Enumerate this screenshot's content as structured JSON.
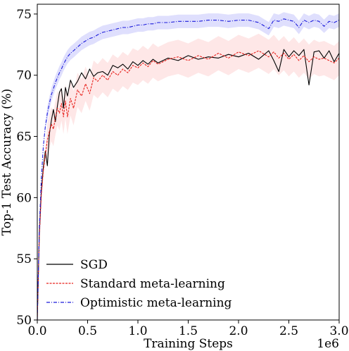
{
  "chart_data": {
    "type": "line",
    "xlabel": "Training Steps",
    "ylabel": "Top-1 Test Accuracy (%)",
    "x_offset_label": "1e6",
    "xlim": [
      0,
      3.0
    ],
    "ylim": [
      50,
      75.8
    ],
    "x_ticks": [
      0.0,
      0.5,
      1.0,
      1.5,
      2.0,
      2.5,
      3.0
    ],
    "x_tick_labels": [
      "0.0",
      "0.5",
      "1.0",
      "1.5",
      "2.0",
      "2.5",
      "3.0"
    ],
    "y_ticks": [
      50,
      55,
      60,
      65,
      70,
      75
    ],
    "y_tick_labels": [
      "50",
      "55",
      "60",
      "65",
      "70",
      "75"
    ],
    "grid": false,
    "legend_position": "lower-left",
    "series": [
      {
        "name": "SGD",
        "color": "#000000",
        "style": "solid",
        "x": [
          0.0,
          0.02,
          0.04,
          0.06,
          0.08,
          0.1,
          0.12,
          0.14,
          0.16,
          0.18,
          0.2,
          0.22,
          0.24,
          0.26,
          0.28,
          0.3,
          0.33,
          0.36,
          0.4,
          0.44,
          0.48,
          0.52,
          0.56,
          0.6,
          0.65,
          0.7,
          0.75,
          0.8,
          0.85,
          0.9,
          0.95,
          1.0,
          1.05,
          1.1,
          1.15,
          1.2,
          1.3,
          1.4,
          1.5,
          1.6,
          1.7,
          1.8,
          1.9,
          2.0,
          2.1,
          2.2,
          2.3,
          2.35,
          2.4,
          2.45,
          2.5,
          2.55,
          2.6,
          2.65,
          2.7,
          2.75,
          2.8,
          2.85,
          2.9,
          2.95,
          3.0
        ],
        "y": [
          50.0,
          57.0,
          60.5,
          62.5,
          63.8,
          62.6,
          65.2,
          66.3,
          67.2,
          66.2,
          67.5,
          68.6,
          68.9,
          67.3,
          69.0,
          68.3,
          69.6,
          69.0,
          69.5,
          70.2,
          69.7,
          70.5,
          69.9,
          70.2,
          70.3,
          70.0,
          70.8,
          70.6,
          70.9,
          70.5,
          71.1,
          70.8,
          71.2,
          70.9,
          71.3,
          71.0,
          71.4,
          71.2,
          71.6,
          71.3,
          71.5,
          71.4,
          71.7,
          71.5,
          71.8,
          71.3,
          72.0,
          71.2,
          70.3,
          72.1,
          71.5,
          72.0,
          71.6,
          72.1,
          69.2,
          71.9,
          72.0,
          71.4,
          72.0,
          71.1,
          71.8
        ]
      },
      {
        "name": "Standard meta-learning",
        "color": "#e8211c",
        "style": "dashed",
        "x": [
          0.0,
          0.02,
          0.04,
          0.06,
          0.08,
          0.1,
          0.12,
          0.14,
          0.16,
          0.18,
          0.2,
          0.22,
          0.24,
          0.26,
          0.28,
          0.3,
          0.33,
          0.36,
          0.4,
          0.44,
          0.48,
          0.52,
          0.56,
          0.6,
          0.65,
          0.7,
          0.75,
          0.8,
          0.85,
          0.9,
          0.95,
          1.0,
          1.05,
          1.1,
          1.15,
          1.2,
          1.3,
          1.4,
          1.5,
          1.6,
          1.7,
          1.8,
          1.9,
          2.0,
          2.1,
          2.2,
          2.3,
          2.35,
          2.4,
          2.45,
          2.5,
          2.55,
          2.6,
          2.65,
          2.7,
          2.75,
          2.8,
          2.85,
          2.9,
          2.95,
          3.0
        ],
        "y": [
          50.0,
          56.8,
          60.2,
          62.2,
          63.5,
          64.7,
          65.4,
          66.0,
          65.6,
          66.5,
          67.3,
          66.9,
          67.7,
          66.6,
          67.9,
          66.6,
          68.1,
          67.3,
          68.8,
          68.3,
          69.3,
          68.5,
          69.8,
          69.5,
          70.0,
          69.6,
          70.3,
          70.0,
          70.5,
          70.2,
          70.8,
          70.6,
          71.0,
          70.7,
          71.2,
          70.9,
          71.3,
          71.5,
          71.2,
          71.6,
          71.3,
          71.8,
          71.4,
          71.9,
          71.6,
          72.0,
          71.5,
          71.9,
          71.4,
          71.8,
          71.3,
          71.7,
          71.2,
          71.6,
          71.1,
          71.5,
          71.3,
          71.4,
          71.2,
          71.0,
          71.4
        ]
      },
      {
        "name": "Optimistic meta-learning",
        "color": "#1a1adb",
        "style": "dashdot",
        "x": [
          0.0,
          0.02,
          0.04,
          0.06,
          0.08,
          0.1,
          0.12,
          0.14,
          0.16,
          0.18,
          0.2,
          0.22,
          0.24,
          0.26,
          0.28,
          0.3,
          0.33,
          0.36,
          0.4,
          0.44,
          0.48,
          0.52,
          0.56,
          0.6,
          0.65,
          0.7,
          0.75,
          0.8,
          0.85,
          0.9,
          0.95,
          1.0,
          1.05,
          1.1,
          1.15,
          1.2,
          1.3,
          1.4,
          1.5,
          1.6,
          1.7,
          1.8,
          1.9,
          2.0,
          2.1,
          2.2,
          2.3,
          2.35,
          2.4,
          2.45,
          2.5,
          2.55,
          2.6,
          2.65,
          2.7,
          2.75,
          2.8,
          2.85,
          2.9,
          2.95,
          3.0
        ],
        "y": [
          50.0,
          57.5,
          61.5,
          64.2,
          65.8,
          66.9,
          67.7,
          68.4,
          68.9,
          69.4,
          69.8,
          70.2,
          70.5,
          70.9,
          71.2,
          71.5,
          71.8,
          72.0,
          72.3,
          72.6,
          72.8,
          73.0,
          73.1,
          73.3,
          73.5,
          73.6,
          73.7,
          73.8,
          73.9,
          73.9,
          74.0,
          74.1,
          74.1,
          74.2,
          74.2,
          74.3,
          74.3,
          74.4,
          74.4,
          74.4,
          74.5,
          74.5,
          74.4,
          74.5,
          74.5,
          74.3,
          73.8,
          74.5,
          74.4,
          74.6,
          74.5,
          74.4,
          73.9,
          74.5,
          74.3,
          74.5,
          74.4,
          74.0,
          74.4,
          74.3,
          74.5
        ]
      }
    ]
  }
}
